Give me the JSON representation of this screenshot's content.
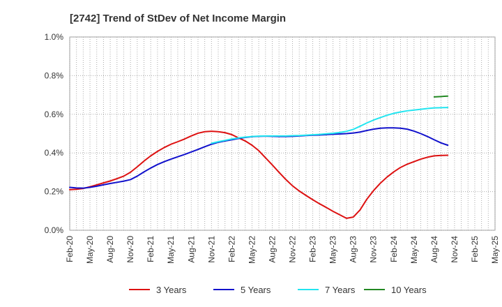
{
  "chart_data": {
    "type": "line",
    "title": "[2742]  Trend of StDev of Net Income Margin",
    "xlabel": "",
    "ylabel": "",
    "ylim": [
      0,
      1.0
    ],
    "y_ticks": [
      "0.0%",
      "0.2%",
      "0.4%",
      "0.6%",
      "0.8%",
      "1.0%"
    ],
    "y_tick_values": [
      0,
      0.2,
      0.4,
      0.6,
      0.8,
      1.0
    ],
    "x_tick_labels": [
      "Feb-20",
      "May-20",
      "Aug-20",
      "Nov-20",
      "Feb-21",
      "May-21",
      "Aug-21",
      "Nov-21",
      "Feb-22",
      "May-22",
      "Aug-22",
      "Nov-22",
      "Feb-23",
      "May-23",
      "Aug-23",
      "Nov-23",
      "Feb-24",
      "May-24",
      "Aug-24",
      "Nov-24",
      "Feb-25",
      "May-25"
    ],
    "grid": true,
    "legend_position": "bottom",
    "series": [
      {
        "name": "3 Years",
        "color": "#dd1111",
        "start_index": 0,
        "values": [
          0.21,
          0.212,
          0.216,
          0.225,
          0.235,
          0.245,
          0.255,
          0.267,
          0.28,
          0.3,
          0.328,
          0.358,
          0.385,
          0.408,
          0.428,
          0.445,
          0.458,
          0.472,
          0.488,
          0.502,
          0.51,
          0.512,
          0.51,
          0.505,
          0.495,
          0.478,
          0.462,
          0.44,
          0.412,
          0.375,
          0.338,
          0.3,
          0.263,
          0.23,
          0.203,
          0.18,
          0.158,
          0.137,
          0.118,
          0.098,
          0.08,
          0.062,
          0.068,
          0.105,
          0.16,
          0.205,
          0.243,
          0.275,
          0.302,
          0.325,
          0.342,
          0.355,
          0.368,
          0.378,
          0.385,
          0.387,
          0.388
        ]
      },
      {
        "name": "5 Years",
        "color": "#1111cc",
        "start_index": 0,
        "values": [
          0.222,
          0.219,
          0.218,
          0.222,
          0.228,
          0.235,
          0.242,
          0.248,
          0.254,
          0.262,
          0.28,
          0.302,
          0.322,
          0.34,
          0.355,
          0.368,
          0.38,
          0.392,
          0.405,
          0.418,
          0.432,
          0.445,
          0.455,
          0.462,
          0.468,
          0.475,
          0.48,
          0.484,
          0.486,
          0.487,
          0.486,
          0.485,
          0.485,
          0.486,
          0.488,
          0.49,
          0.492,
          0.493,
          0.495,
          0.497,
          0.498,
          0.5,
          0.503,
          0.508,
          0.516,
          0.523,
          0.528,
          0.53,
          0.53,
          0.528,
          0.523,
          0.513,
          0.5,
          0.485,
          0.468,
          0.452,
          0.44
        ]
      },
      {
        "name": "7 Years",
        "color": "#22e5f0",
        "start_index": 21,
        "values": [
          0.45,
          0.458,
          0.465,
          0.472,
          0.478,
          0.482,
          0.485,
          0.487,
          0.488,
          0.488,
          0.488,
          0.488,
          0.489,
          0.49,
          0.492,
          0.494,
          0.496,
          0.499,
          0.502,
          0.506,
          0.512,
          0.522,
          0.538,
          0.555,
          0.57,
          0.583,
          0.595,
          0.605,
          0.612,
          0.618,
          0.622,
          0.626,
          0.63,
          0.633,
          0.634,
          0.635
        ]
      },
      {
        "name": "10 Years",
        "color": "#228822",
        "start_index": 54,
        "values": [
          0.69,
          0.692,
          0.694
        ]
      }
    ]
  }
}
